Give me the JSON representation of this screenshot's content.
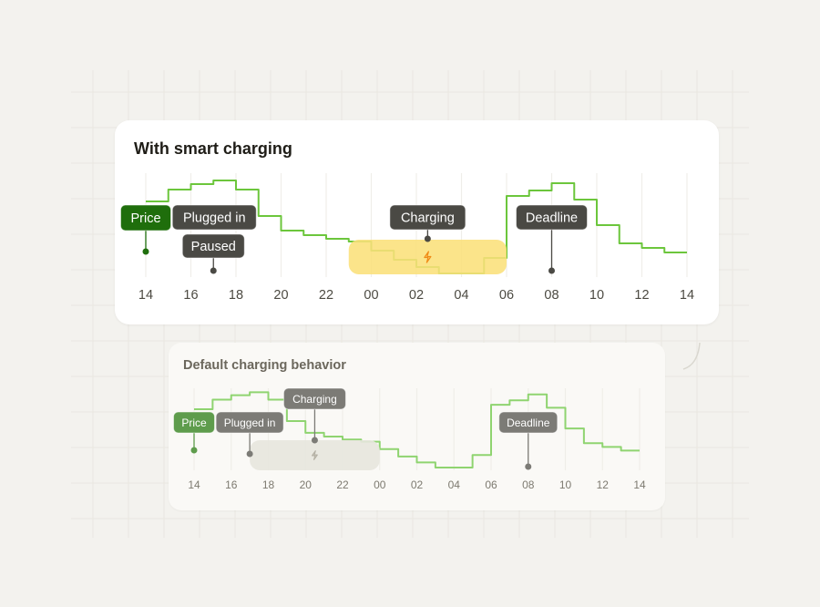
{
  "colors": {
    "background": "#f3f2ee",
    "price_line": "#6cc63c",
    "price_line_muted": "#8fd470",
    "label_dark": "#4a4944",
    "label_muted": "#7c7b76",
    "price_label": "#1f6e0c",
    "price_label_muted": "#5e9c4c",
    "charging_window": "#fbe07a",
    "charging_window_muted": "#e7e5de",
    "bolt_icon": "#f08a16"
  },
  "chart_data": [
    {
      "type": "line",
      "style": "step",
      "title": "With smart charging",
      "x_tick_labels": [
        "14",
        "16",
        "18",
        "20",
        "22",
        "00",
        "02",
        "04",
        "06",
        "08",
        "10",
        "12",
        "14"
      ],
      "hours": [
        "14",
        "15",
        "16",
        "17",
        "18",
        "19",
        "20",
        "21",
        "22",
        "23",
        "00",
        "01",
        "02",
        "03",
        "04",
        "05",
        "06",
        "07",
        "08",
        "09",
        "10",
        "11",
        "12",
        "13"
      ],
      "values": [
        79,
        92,
        98,
        102,
        92,
        63,
        47,
        42,
        38,
        35,
        25,
        15,
        7,
        0,
        0,
        17,
        85,
        91,
        99,
        81,
        53,
        33,
        28,
        23
      ],
      "y_axis": "none (relative price level)",
      "ylim": [
        0,
        105
      ],
      "grid": "vertical lines every 2 hours",
      "charging_window": {
        "start": "23:00",
        "end": "06:00",
        "icon": "bolt-icon"
      },
      "annotations": [
        {
          "label": "Plugged in",
          "at": "17:00"
        },
        {
          "label": "Paused",
          "at": "17:00"
        },
        {
          "label": "Charging",
          "at": "02:30"
        },
        {
          "label": "Deadline",
          "at": "08:00"
        },
        {
          "label": "Price",
          "at": "14:00"
        }
      ]
    },
    {
      "type": "line",
      "style": "step",
      "title": "Default charging behavior",
      "x_tick_labels": [
        "14",
        "16",
        "18",
        "20",
        "22",
        "00",
        "02",
        "04",
        "06",
        "08",
        "10",
        "12",
        "14"
      ],
      "hours": [
        "14",
        "15",
        "16",
        "17",
        "18",
        "19",
        "20",
        "21",
        "22",
        "23",
        "00",
        "01",
        "02",
        "03",
        "04",
        "05",
        "06",
        "07",
        "08",
        "09",
        "10",
        "11",
        "12",
        "13"
      ],
      "values": [
        79,
        92,
        98,
        102,
        92,
        63,
        47,
        42,
        38,
        35,
        25,
        15,
        7,
        0,
        0,
        17,
        85,
        91,
        99,
        81,
        53,
        33,
        28,
        23
      ],
      "y_axis": "none (relative price level)",
      "ylim": [
        0,
        105
      ],
      "grid": "vertical lines every 2 hours",
      "charging_window": {
        "start": "17:00",
        "end": "00:00",
        "icon": "bolt-icon"
      },
      "annotations": [
        {
          "label": "Plugged in",
          "at": "17:00"
        },
        {
          "label": "Charging",
          "at": "20:30"
        },
        {
          "label": "Deadline",
          "at": "08:00"
        },
        {
          "label": "Price",
          "at": "14:00"
        }
      ]
    }
  ]
}
